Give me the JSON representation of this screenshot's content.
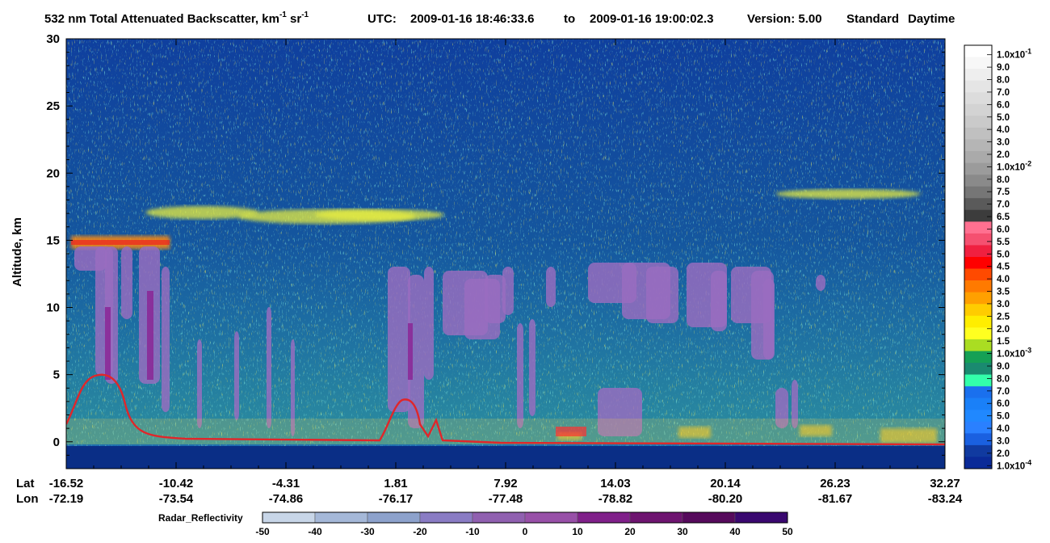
{
  "header": {
    "product": "532 nm Total Attenuated Backscatter, km",
    "exp1": "-1",
    "sr": " sr",
    "exp2": "-1",
    "utc_label": "UTC:",
    "utc_start": "2009-01-16 18:46:33.6",
    "to_word": "to",
    "utc_end": "2009-01-16 19:00:02.3",
    "version": "Version: 5.00",
    "standard": "Standard",
    "daytime": "Daytime"
  },
  "chart_data": {
    "type": "heatmap",
    "ylabel": "Altitude, km",
    "ylim": [
      -2,
      30
    ],
    "yticks": [
      "30",
      "25",
      "20",
      "15",
      "10",
      "5",
      "0"
    ],
    "x_row_labels": [
      "Lat",
      "Lon"
    ],
    "lat_ticks": [
      "-16.52",
      "-10.42",
      "-4.31",
      "1.81",
      "7.92",
      "14.03",
      "20.14",
      "26.23",
      "32.27"
    ],
    "lon_ticks": [
      "-72.19",
      "-73.54",
      "-74.86",
      "-76.17",
      "-77.48",
      "-78.82",
      "-80.20",
      "-81.67",
      "-83.24"
    ],
    "colorbar": {
      "labels": [
        "1.0x10",
        "9.0",
        "8.0",
        "7.0",
        "6.0",
        "5.0",
        "4.0",
        "3.0",
        "2.0",
        "1.0x10",
        "8.0",
        "7.5",
        "7.0",
        "6.5",
        "6.0",
        "5.5",
        "5.0",
        "4.5",
        "4.0",
        "3.5",
        "3.0",
        "2.5",
        "2.0",
        "1.5",
        "1.0x10",
        "9.0",
        "8.0",
        "7.0",
        "6.0",
        "5.0",
        "4.0",
        "3.0",
        "2.0",
        "1.0x10"
      ],
      "exponents": [
        "-1",
        "",
        "",
        "",
        "",
        "",
        "",
        "",
        "",
        "-2",
        "",
        "",
        "",
        "",
        "",
        "",
        "",
        "",
        "",
        "",
        "",
        "",
        "",
        "",
        "-3",
        "",
        "",
        "",
        "",
        "",
        "",
        "",
        "",
        "-4"
      ],
      "colors": [
        "#ffffff",
        "#f7f7f7",
        "#eeeeee",
        "#e5e5e5",
        "#dcdcdc",
        "#d3d3d3",
        "#cacaca",
        "#c0c0c0",
        "#b5b5b5",
        "#aaaaaa",
        "#9b9b9b",
        "#8a8a8a",
        "#767676",
        "#5a5a5a",
        "#3c3c3c",
        "#ff7090",
        "#f55070",
        "#f02040",
        "#ff0000",
        "#ff4a00",
        "#ff7a00",
        "#ffa000",
        "#ffcc00",
        "#ffee00",
        "#ffff20",
        "#aadd22",
        "#15a055",
        "#1a8a70",
        "#33ffaa",
        "#1a70ee",
        "#1a80f8",
        "#2088ff",
        "#2a80ff",
        "#1a60e0",
        "#103aa0",
        "#0a2a98"
      ]
    },
    "radar": {
      "label": "Radar_Reflectivity",
      "ticks": [
        "-50",
        "-40",
        "-30",
        "-20",
        "-10",
        "0",
        "10",
        "20",
        "30",
        "40",
        "50"
      ],
      "colors": [
        "#c8d6e8",
        "#a5b8d8",
        "#8da2cc",
        "#8a7cc4",
        "#9060b0",
        "#9850a8",
        "#80208a",
        "#6e1470",
        "#560a5c",
        "#3a0870"
      ]
    }
  }
}
